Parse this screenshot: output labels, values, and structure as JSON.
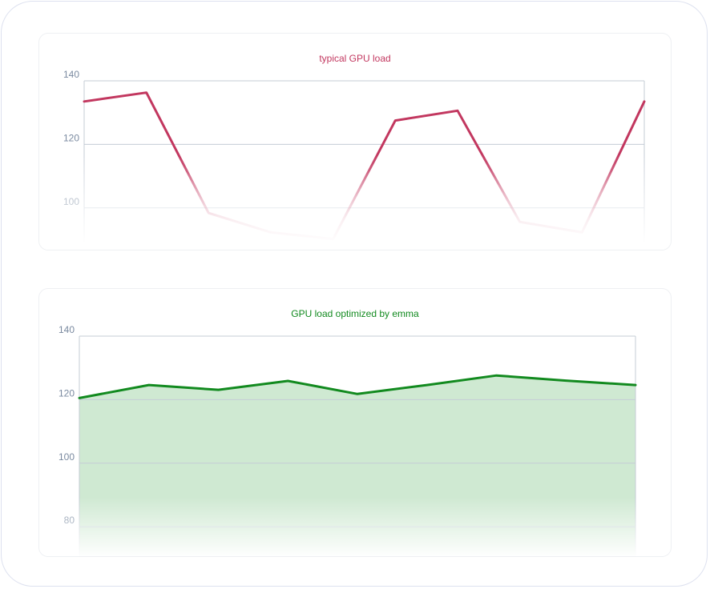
{
  "chart_data": [
    {
      "type": "line",
      "title": "typical GPU load",
      "color": "#c2375f",
      "y_ticks": [
        100,
        120,
        140
      ],
      "ylim": [
        90,
        140
      ],
      "series": [
        {
          "values": [
            133.5,
            136.3,
            98.4,
            92.3,
            90.2,
            127.5,
            130.6,
            95.6,
            92.3,
            133.5
          ]
        }
      ]
    },
    {
      "type": "area",
      "title": "GPU load optimized by emma",
      "color": "#128a1f",
      "fill_color": "#cfe9d2",
      "y_ticks": [
        80,
        100,
        120,
        140
      ],
      "ylim": [
        72,
        140
      ],
      "series": [
        {
          "values": [
            120.5,
            124.6,
            123.1,
            125.9,
            121.8,
            124.6,
            127.6,
            126.0,
            124.6
          ]
        }
      ]
    }
  ]
}
